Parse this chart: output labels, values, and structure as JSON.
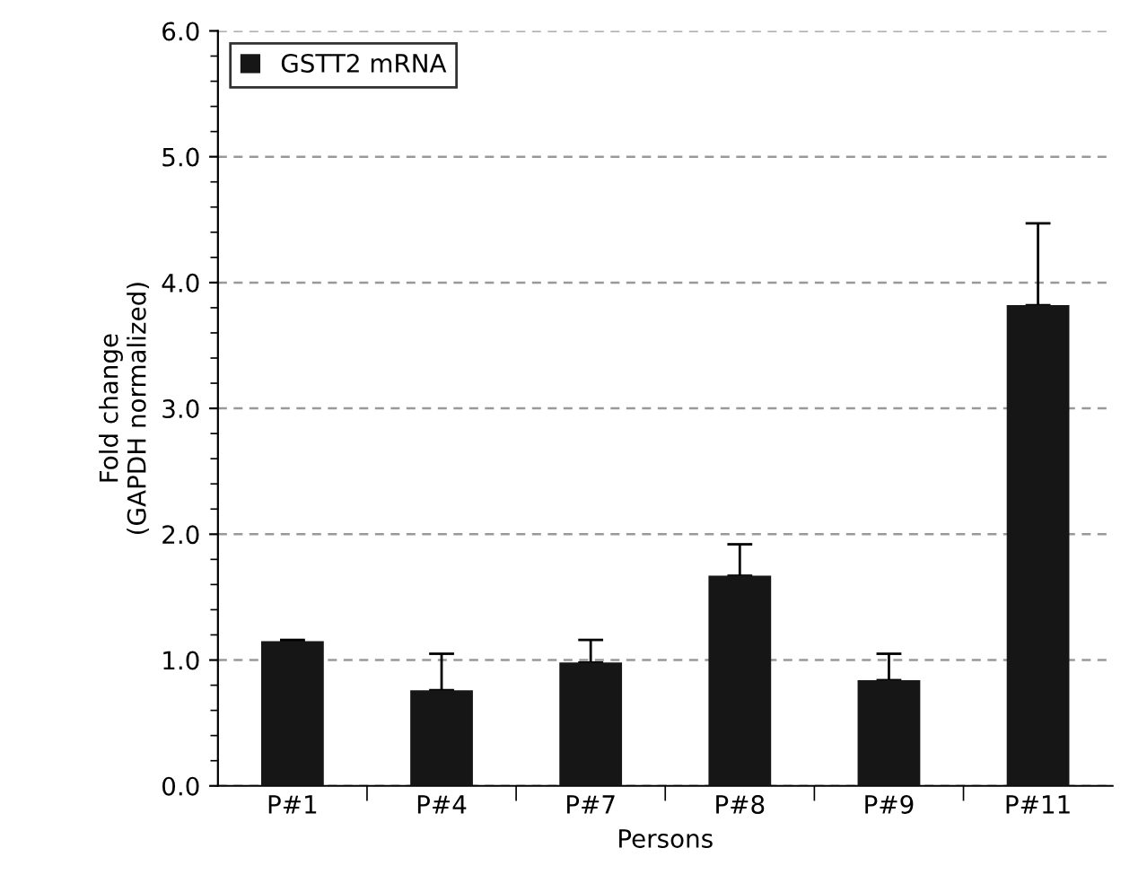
{
  "chart_data": {
    "type": "bar",
    "xlabel": "Persons",
    "ylabel": "Fold change\n(GAPDH normalized)",
    "categories": [
      "P#1",
      "P#4",
      "P#7",
      "P#8",
      "P#9",
      "P#11"
    ],
    "series": [
      {
        "name": "GSTT2 mRNA",
        "color": "#161616",
        "values": [
          1.15,
          0.76,
          0.98,
          1.67,
          0.84,
          3.82
        ],
        "errors": [
          [
            1.15,
            1.16
          ],
          [
            0.76,
            1.05
          ],
          [
            0.98,
            1.16
          ],
          [
            1.67,
            1.92
          ],
          [
            0.84,
            1.05
          ],
          [
            3.82,
            4.47
          ]
        ]
      }
    ],
    "ylim": [
      0,
      6
    ],
    "yticks": [
      {
        "value": 0,
        "label": "0.0"
      },
      {
        "value": 1,
        "label": "1.0"
      },
      {
        "value": 2,
        "label": "2.0"
      },
      {
        "value": 3,
        "label": "3.0"
      },
      {
        "value": 4,
        "label": "4.0"
      },
      {
        "value": 5,
        "label": "5.0"
      },
      {
        "value": 6,
        "label": "6.0"
      }
    ],
    "grid": "y",
    "legend": "top left"
  }
}
